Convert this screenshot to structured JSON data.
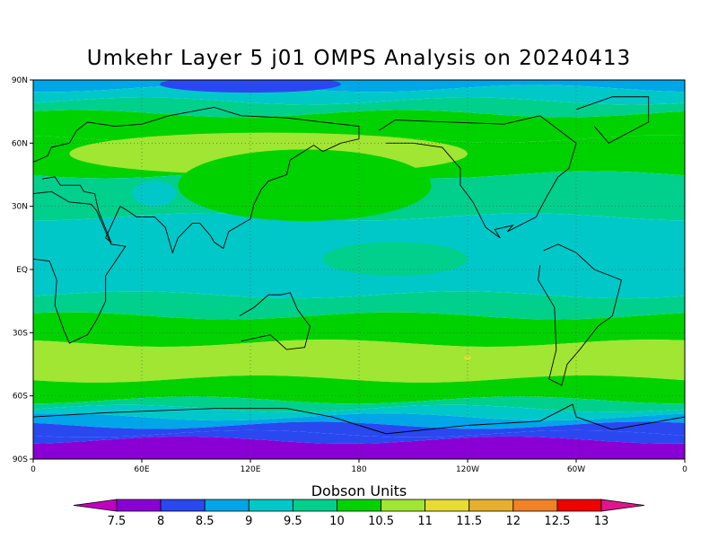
{
  "title": "Umkehr Layer 5 j01 OMPS Analysis on 20240413",
  "map": {
    "type": "filled-contour-map",
    "projection": "cylindrical",
    "lat_labels": [
      "90N",
      "60N",
      "30N",
      "EQ",
      "30S",
      "60S",
      "90S"
    ],
    "lon_labels": [
      "0",
      "60E",
      "120E",
      "180",
      "120W",
      "60W",
      "0"
    ],
    "bands_north_to_south": [
      {
        "lat_top": 90,
        "lat_bottom": 86,
        "value": "9"
      },
      {
        "lat_top": 86,
        "lat_bottom": 80,
        "value": "9.5"
      },
      {
        "lat_top": 80,
        "lat_bottom": 74,
        "value": "10"
      },
      {
        "lat_top": 74,
        "lat_bottom": 62,
        "value": "10.5"
      },
      {
        "lat_top": 62,
        "lat_bottom": 45,
        "value": "10.5"
      },
      {
        "lat_top": 45,
        "lat_bottom": 25,
        "value": "10"
      },
      {
        "lat_top": 25,
        "lat_bottom": -12,
        "value": "9.5"
      },
      {
        "lat_top": -12,
        "lat_bottom": -22,
        "value": "10"
      },
      {
        "lat_top": -22,
        "lat_bottom": -35,
        "value": "10.5"
      },
      {
        "lat_top": -35,
        "lat_bottom": -52,
        "value": "11"
      },
      {
        "lat_top": -52,
        "lat_bottom": -62,
        "value": "10.5"
      },
      {
        "lat_top": -62,
        "lat_bottom": -66,
        "value": "10"
      },
      {
        "lat_top": -66,
        "lat_bottom": -70,
        "value": "9.5"
      },
      {
        "lat_top": -70,
        "lat_bottom": -74,
        "value": "9"
      },
      {
        "lat_top": -74,
        "lat_bottom": -78,
        "value": "8.5"
      },
      {
        "lat_top": -78,
        "lat_bottom": -81,
        "value": "8"
      },
      {
        "lat_top": -81,
        "lat_bottom": -90,
        "value": "7.5"
      }
    ],
    "features": [
      {
        "name": "arctic-low-8.5",
        "value": "8.5",
        "lon_center": 120,
        "lat_center": 88,
        "lon_radius": 50,
        "lat_radius": 4
      },
      {
        "name": "greenland-high-11",
        "value": "11",
        "lon_center": 130,
        "lat_center": 55,
        "lon_radius": 110,
        "lat_radius": 10
      },
      {
        "name": "pacific-high-10.5",
        "value": "10.5",
        "lon_center": 150,
        "lat_center": 40,
        "lon_radius": 70,
        "lat_radius": 17
      },
      {
        "name": "asia-low-9.5",
        "value": "9.5",
        "lon_center": 67,
        "lat_center": 36,
        "lon_radius": 12,
        "lat_radius": 6
      },
      {
        "name": "pacific-eq-10",
        "value": "10",
        "lon_center": 200,
        "lat_center": 5,
        "lon_radius": 40,
        "lat_radius": 8
      },
      {
        "name": "southern-11.5-spot",
        "value": "11.5",
        "lon_center": 240,
        "lat_center": -42,
        "lon_radius": 2,
        "lat_radius": 1
      }
    ]
  },
  "colorbar": {
    "title": "Dobson Units",
    "labels": [
      "7.5",
      "8",
      "8.5",
      "9",
      "9.5",
      "10",
      "10.5",
      "11",
      "11.5",
      "12",
      "12.5",
      "13"
    ],
    "colors": [
      "#c000c0",
      "#8a00d4",
      "#2a48f0",
      "#00a6e8",
      "#00c8c8",
      "#00d08c",
      "#00d200",
      "#a0e632",
      "#e6dc32",
      "#e6af2e",
      "#f08228",
      "#f00000",
      "#e0148c"
    ],
    "value_colors": {
      "7.5": "#8a00d4",
      "8": "#2a48f0",
      "8.5": "#2a48f0",
      "9": "#00a6e8",
      "9.5": "#00c8c8",
      "10": "#00d08c",
      "10.5": "#00d200",
      "11": "#a0e632",
      "11.5": "#e6dc32"
    }
  }
}
